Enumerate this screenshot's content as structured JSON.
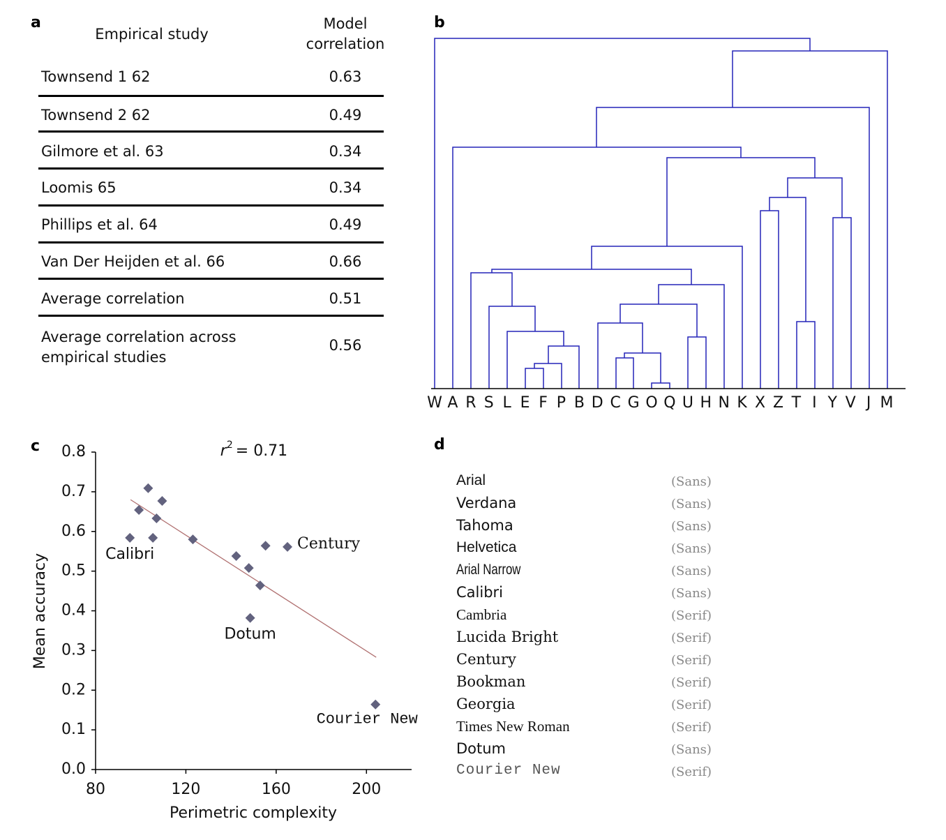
{
  "panel_labels": [
    "a",
    "b",
    "c",
    "d"
  ],
  "table": {
    "header": [
      "Empirical study",
      "Model correlation"
    ],
    "rows": [
      [
        "Townsend 1 62",
        0.63
      ],
      [
        "Townsend 2 62",
        0.49
      ],
      [
        "Gilmore et al. 63",
        0.34
      ],
      [
        "Loomis 65",
        0.34
      ],
      [
        "Phillips et al. 64",
        0.49
      ],
      [
        "Van Der Heijden et al. 66",
        0.66
      ],
      [
        "Average correlation",
        0.51
      ],
      [
        "Average correlation across empirical studies",
        0.56
      ]
    ]
  },
  "dendrogram": {
    "leaves": [
      "W",
      "A",
      "R",
      "S",
      "L",
      "E",
      "F",
      "P",
      "B",
      "D",
      "C",
      "G",
      "O",
      "Q",
      "U",
      "H",
      "N",
      "K",
      "X",
      "Z",
      "T",
      "I",
      "Y",
      "V",
      "J",
      "M"
    ]
  },
  "chart_data": {
    "type": "scatter",
    "annotation": {
      "variable": "r",
      "exponent": "2",
      "text": "= 0.71"
    },
    "x_label": "Perimetric complexity",
    "y_label": "Mean accuracy",
    "x": [
      103.3,
      109.5,
      99.2,
      107,
      95.2,
      105.4,
      123.1,
      142.3,
      155.3,
      165,
      147.9,
      152.9,
      148.5,
      204
    ],
    "y": [
      0.709,
      0.677,
      0.654,
      0.633,
      0.584,
      0.584,
      0.58,
      0.538,
      0.564,
      0.561,
      0.508,
      0.464,
      0.382,
      0.164
    ],
    "labels": [
      null,
      null,
      null,
      null,
      "Calibri",
      null,
      null,
      null,
      null,
      "Century",
      null,
      null,
      "Dotum",
      "Courier New"
    ],
    "color": "#62627e",
    "fit_line": {
      "x": [
        95.5,
        204.3
      ],
      "y": [
        0.68,
        0.283
      ],
      "color": "#b07070"
    },
    "xlim": [
      80,
      220
    ],
    "ylim": [
      0,
      0.8
    ],
    "xticks": [
      80,
      120,
      160,
      200
    ],
    "yticks": [
      {
        "value": 0,
        "label": "0.0"
      },
      0.1,
      0.2,
      0.3,
      0.4,
      0.5,
      0.6,
      0.7,
      0.8
    ]
  },
  "font_list": {
    "rows": [
      [
        "Arial",
        "(Sans)"
      ],
      [
        "Verdana",
        "(Sans)"
      ],
      [
        "Tahoma",
        "(Sans)"
      ],
      [
        "Helvetica",
        "(Sans)"
      ],
      [
        "Arial Narrow",
        "(Sans)"
      ],
      [
        "Calibri",
        "(Sans)"
      ],
      [
        "Cambria",
        "(Serif)"
      ],
      [
        "Lucida Bright",
        "(Serif)"
      ],
      [
        "Century",
        "(Serif)"
      ],
      [
        "Bookman",
        "(Serif)"
      ],
      [
        "Georgia",
        "(Serif)"
      ],
      [
        "Times New Roman",
        "(Serif)"
      ],
      [
        "Dotum",
        "(Sans)"
      ],
      [
        "Courier New",
        "(Serif)"
      ]
    ]
  }
}
